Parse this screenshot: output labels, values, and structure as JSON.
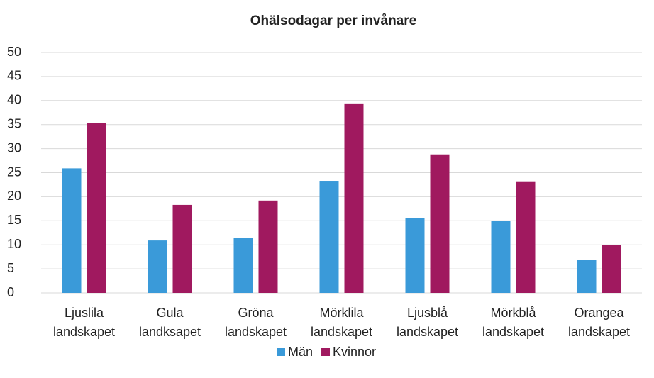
{
  "chart_data": {
    "type": "bar",
    "title": "Ohälsodagar per invånare",
    "categories": [
      "Ljuslila landskapet",
      "Gula landksapet",
      "Gröna landskapet",
      "Mörklila landskapet",
      "Ljusblå landskapet",
      "Mörkblå landskapet",
      "Orangea landskapet"
    ],
    "series": [
      {
        "name": "Män",
        "color": "#3a9ad9",
        "values": [
          25.9,
          10.9,
          11.5,
          23.3,
          15.5,
          15.0,
          6.8
        ]
      },
      {
        "name": "Kvinnor",
        "color": "#a0195f",
        "values": [
          35.3,
          18.3,
          19.2,
          39.4,
          28.8,
          23.2,
          10.0
        ]
      }
    ],
    "ylim": [
      0,
      50
    ],
    "yticks": [
      0,
      5,
      10,
      15,
      20,
      25,
      30,
      35,
      40,
      45,
      50
    ],
    "grid": true,
    "legend": "bottom"
  }
}
